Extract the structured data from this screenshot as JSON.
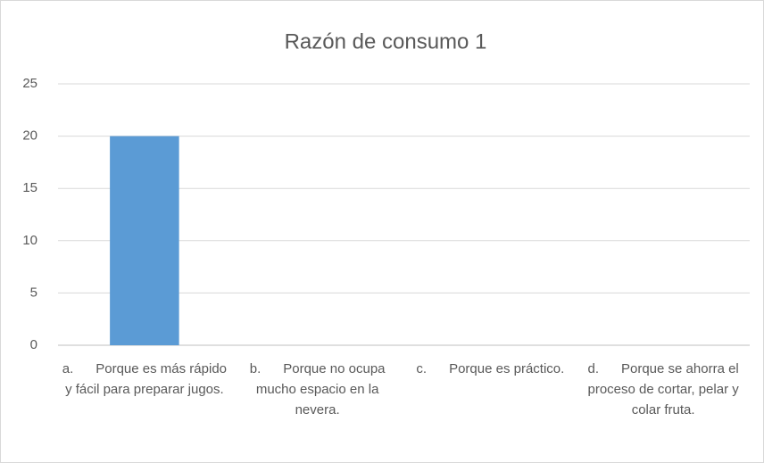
{
  "chart_data": {
    "type": "bar",
    "title": "Razón de consumo 1",
    "categories": [
      "a.      Porque es más rápido y fácil para preparar jugos.",
      "b.      Porque no ocupa mucho espacio en la nevera.",
      "c.      Porque es práctico.",
      "d.      Porque se ahorra el proceso de cortar, pelar y colar fruta."
    ],
    "values": [
      20,
      0,
      0,
      0
    ],
    "color": "#5b9bd5",
    "ylim": [
      0,
      25
    ],
    "yticks": [
      0,
      5,
      10,
      15,
      20,
      25
    ],
    "grid": true
  }
}
